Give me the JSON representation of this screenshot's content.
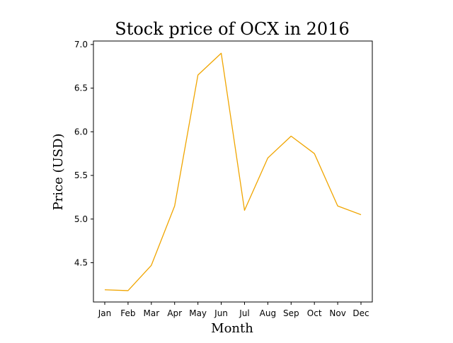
{
  "chart_data": {
    "type": "line",
    "title": "Stock price of OCX in 2016",
    "xlabel": "Month",
    "ylabel": "Price (USD)",
    "categories": [
      "Jan",
      "Feb",
      "Mar",
      "Apr",
      "May",
      "Jun",
      "Jul",
      "Aug",
      "Sep",
      "Oct",
      "Nov",
      "Dec"
    ],
    "series": [
      {
        "values": [
          4.19,
          4.18,
          4.47,
          5.15,
          6.65,
          6.9,
          5.1,
          5.7,
          5.95,
          5.75,
          5.15,
          5.05
        ],
        "color": "#f0a500"
      }
    ],
    "yticks": [
      4.5,
      5.0,
      5.5,
      6.0,
      6.5,
      7.0
    ],
    "ytick_labels": [
      "4.5",
      "5.0",
      "5.5",
      "6.0",
      "6.5",
      "7.0"
    ],
    "ylim": [
      4.05,
      7.04
    ],
    "grid": false,
    "legend": "none"
  }
}
